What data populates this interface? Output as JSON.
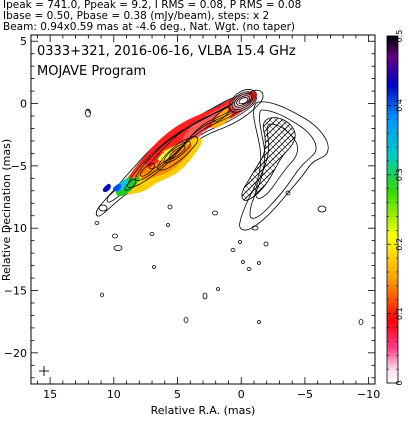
{
  "header": {
    "line1": "Ipeak = 741.0, Ppeak = 9.2, I RMS = 0.08, P RMS = 0.08",
    "line2": "Ibase = 0.50, Pbase = 0.38 (mJy/beam), steps: x 2",
    "line3": "Beam: 0.94x0.59 mas at -4.6 deg., Nat. Wgt. (no taper)"
  },
  "chart_data": {
    "type": "contour",
    "title": "0333+321, 2016-06-16, VLBA 15.4 GHz",
    "subtitle": "MOJAVE Program",
    "xlabel": "Relative R.A. (mas)",
    "ylabel": "Relative Decination (mas)",
    "xlim": [
      16.5,
      -10.5
    ],
    "ylim": [
      -22.5,
      5.5
    ],
    "x_ticks": [
      15,
      10,
      5,
      0,
      -5,
      -10
    ],
    "y_ticks": [
      5,
      0,
      -5,
      -10,
      -15,
      -20
    ],
    "x_tick_labels": [
      "15",
      "10",
      "5",
      "0",
      "−5",
      "−10"
    ],
    "y_tick_labels": [
      "5",
      "0",
      "−5",
      "−10",
      "−15",
      "−20"
    ],
    "colorbar": {
      "min": 0,
      "max": 0.5,
      "ticks": [
        0,
        0.1,
        0.2,
        0.3,
        0.4,
        0.5
      ],
      "tick_labels": [
        "0",
        "0.1",
        "0.2",
        "0.3",
        "0.4",
        "0.5"
      ]
    },
    "core": {
      "x": 0,
      "y": 0
    },
    "jet_direction": "south-east"
  }
}
